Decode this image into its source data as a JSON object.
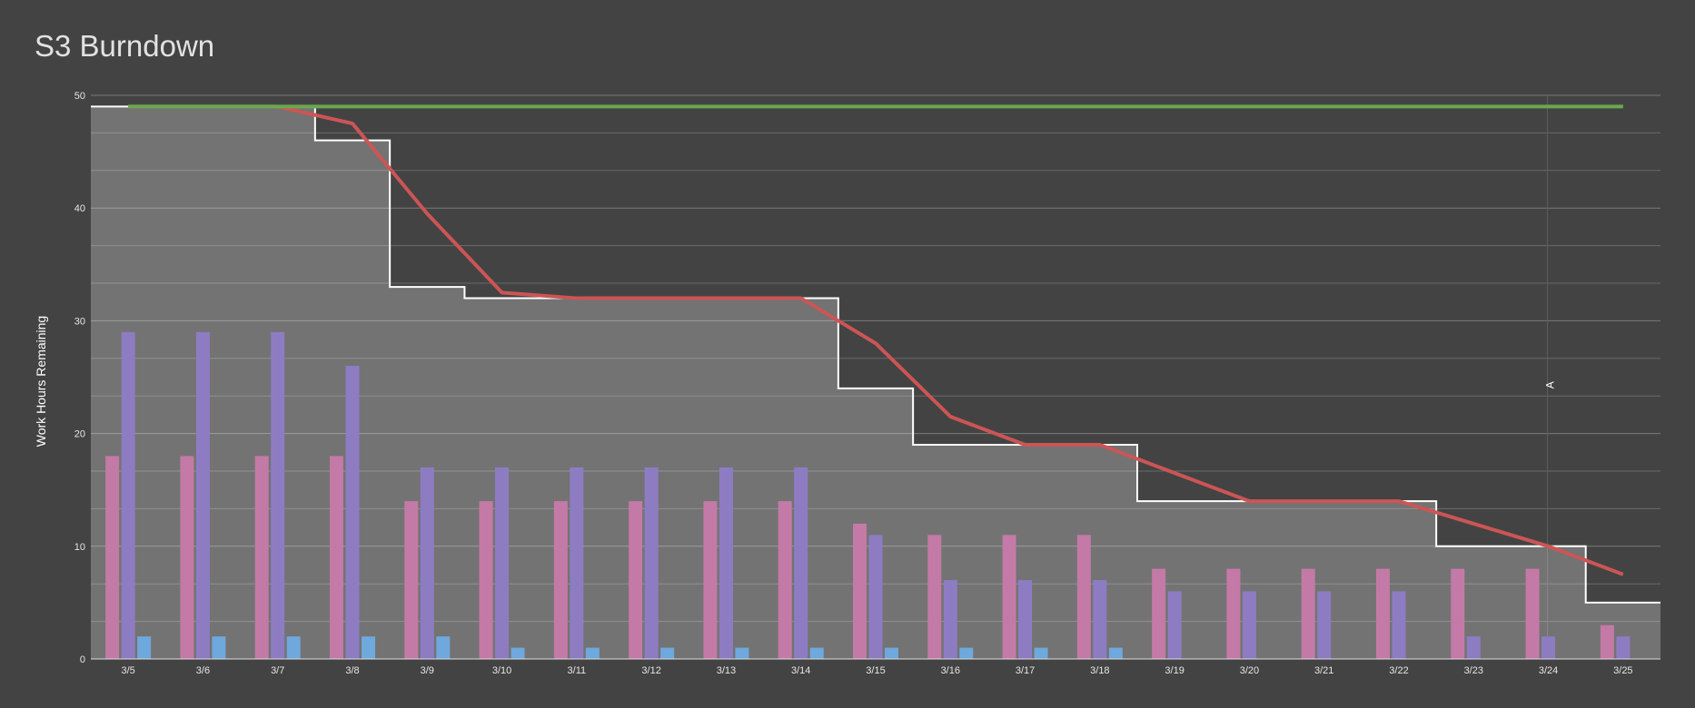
{
  "chart_data": {
    "type": "bar",
    "title": "S3 Burndown",
    "ylabel": "Work Hours Remaining",
    "xlabel": "",
    "ylim": [
      0,
      50
    ],
    "y_ticks": [
      0,
      10,
      20,
      30,
      40,
      50
    ],
    "grid": true,
    "categories": [
      "3/5",
      "3/6",
      "3/7",
      "3/8",
      "3/9",
      "3/10",
      "3/11",
      "3/12",
      "3/13",
      "3/14",
      "3/15",
      "3/16",
      "3/17",
      "3/18",
      "3/19",
      "3/20",
      "3/21",
      "3/22",
      "3/23",
      "3/24",
      "3/25"
    ],
    "bar_series": [
      {
        "color": "#c47aa6",
        "values": [
          18,
          18,
          18,
          18,
          14,
          14,
          14,
          14,
          14,
          14,
          12,
          11,
          11,
          11,
          8,
          8,
          8,
          8,
          8,
          8,
          3
        ]
      },
      {
        "color": "#8e7cc3",
        "values": [
          29,
          29,
          29,
          26,
          17,
          17,
          17,
          17,
          17,
          17,
          11,
          7,
          7,
          7,
          6,
          6,
          6,
          6,
          2,
          2,
          2
        ]
      },
      {
        "color": "#6fa8dc",
        "values": [
          2,
          2,
          2,
          2,
          2,
          1,
          1,
          1,
          1,
          1,
          1,
          1,
          1,
          1,
          0,
          0,
          0,
          0,
          0,
          0,
          0
        ]
      }
    ],
    "step_area": {
      "color": "#ffffff",
      "values": [
        49,
        49,
        49,
        46,
        33,
        32,
        32,
        32,
        32,
        32,
        24,
        19,
        19,
        19,
        14,
        14,
        14,
        14,
        10,
        10,
        5
      ]
    },
    "line_series": [
      {
        "color": "#cc5555",
        "values": [
          49,
          49,
          49,
          47.5,
          39.5,
          32.5,
          32,
          32,
          32,
          32,
          28,
          21.5,
          19,
          19,
          16.5,
          14,
          14,
          14,
          12,
          10,
          7.5
        ]
      },
      {
        "color": "#6aa84f",
        "values": [
          49,
          49,
          49,
          49,
          49,
          49,
          49,
          49,
          49,
          49,
          49,
          49,
          49,
          49,
          49,
          49,
          49,
          49,
          49,
          49,
          49
        ]
      }
    ],
    "annotation": {
      "category": "3/24",
      "label": "A"
    }
  }
}
